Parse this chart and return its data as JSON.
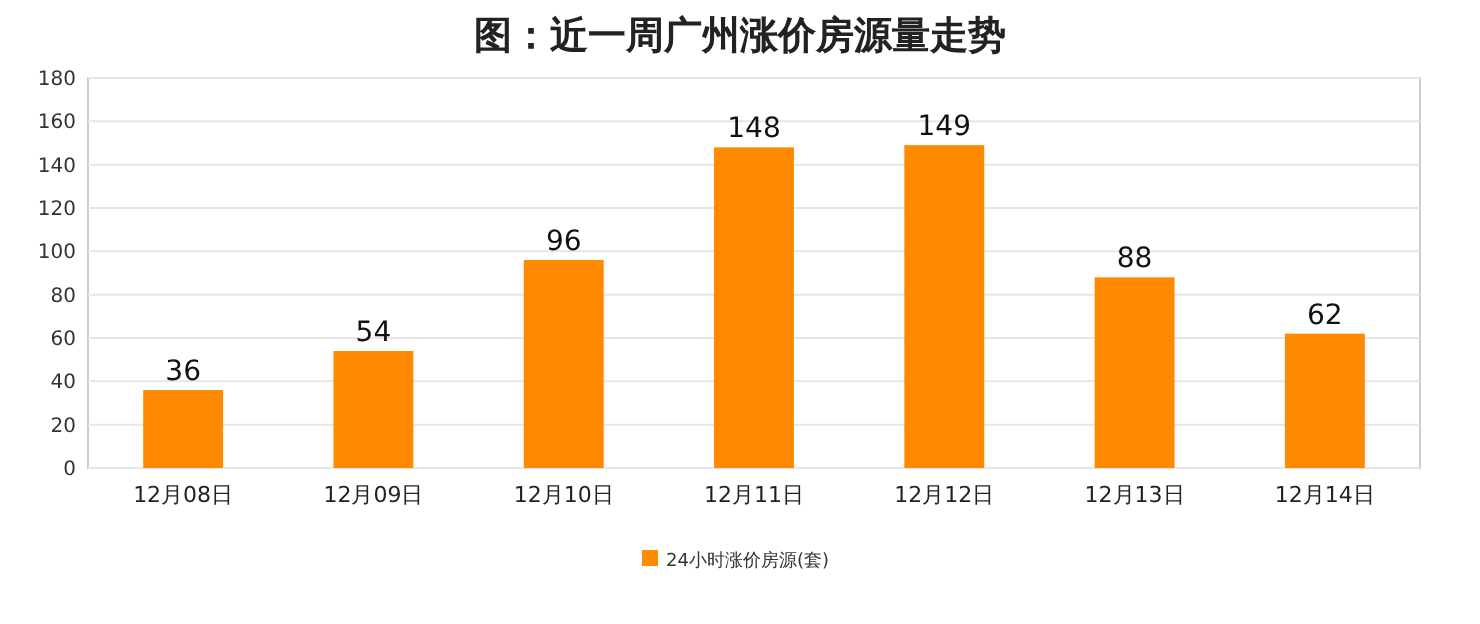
{
  "chart_data": {
    "type": "bar",
    "title": "图：近一周广州涨价房源量走势",
    "categories": [
      "12月08日",
      "12月09日",
      "12月10日",
      "12月11日",
      "12月12日",
      "12月13日",
      "12月14日"
    ],
    "series": [
      {
        "name": "24小时涨价房源(套)",
        "color": "#ff8a00",
        "values": [
          36,
          54,
          96,
          148,
          149,
          88,
          62
        ]
      }
    ],
    "ylim": [
      0,
      180
    ],
    "yticks": [
      0,
      20,
      40,
      60,
      80,
      100,
      120,
      140,
      160,
      180
    ],
    "grid": "y",
    "data_labels": true,
    "legend": "bottom"
  }
}
